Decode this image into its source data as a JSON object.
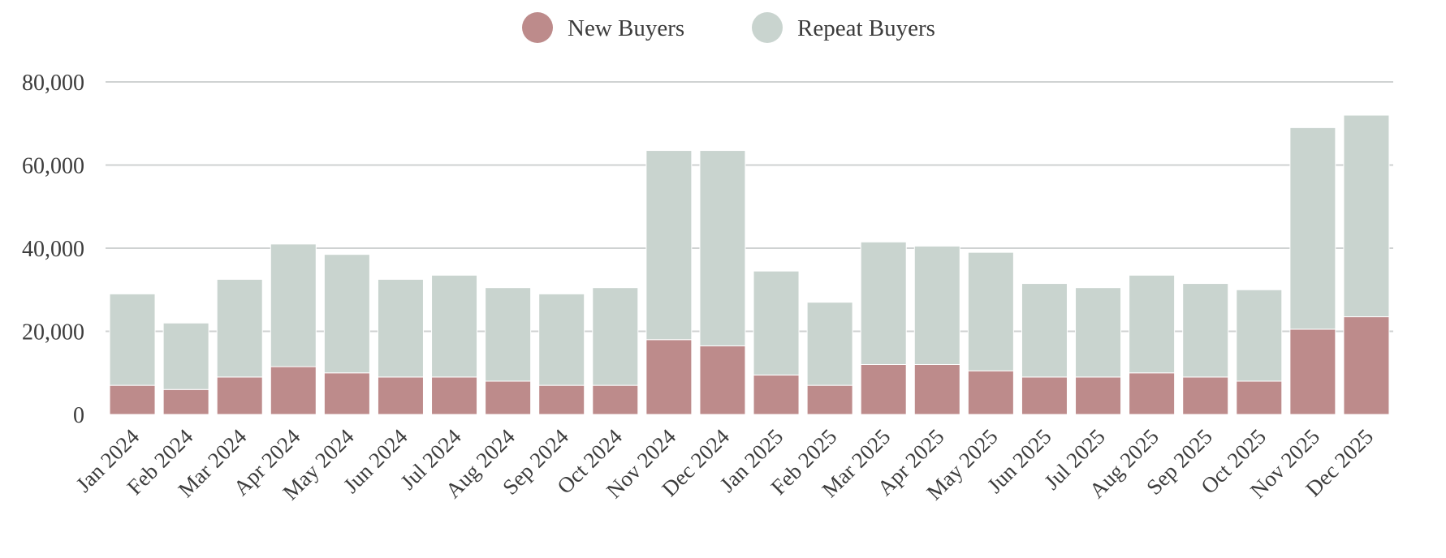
{
  "chart_data": {
    "type": "bar",
    "stacked": true,
    "categories": [
      "Jan 2024",
      "Feb 2024",
      "Mar 2024",
      "Apr 2024",
      "May 2024",
      "Jun 2024",
      "Jul 2024",
      "Aug 2024",
      "Sep 2024",
      "Oct 2024",
      "Nov 2024",
      "Dec 2024",
      "Jan 2025",
      "Feb 2025",
      "Mar 2025",
      "Apr 2025",
      "May 2025",
      "Jun 2025",
      "Jul 2025",
      "Aug 2025",
      "Sep 2025",
      "Oct 2025",
      "Nov 2025",
      "Dec 2025"
    ],
    "series": [
      {
        "name": "New Buyers",
        "color": "#bd8b8b",
        "values": [
          7000,
          6000,
          9000,
          11500,
          10000,
          9000,
          9000,
          8000,
          7000,
          7000,
          18000,
          16500,
          9500,
          7000,
          12000,
          12000,
          10500,
          9000,
          9000,
          10000,
          9000,
          8000,
          20500,
          23500
        ]
      },
      {
        "name": "Repeat Buyers",
        "color": "#c9d4cf",
        "values": [
          22000,
          16000,
          23500,
          29500,
          28500,
          23500,
          24500,
          22500,
          22000,
          23500,
          45500,
          47000,
          25000,
          20000,
          29500,
          28500,
          28500,
          22500,
          21500,
          23500,
          22500,
          22000,
          48500,
          48500
        ]
      }
    ],
    "yticks": [
      "0",
      "20,000",
      "40,000",
      "60,000",
      "80,000"
    ],
    "ytick_values": [
      0,
      20000,
      40000,
      60000,
      80000
    ],
    "ylim": [
      0,
      80000
    ],
    "grid": "horizontal",
    "legend_position": "top-center",
    "xlabel": "",
    "ylabel": "",
    "title": ""
  }
}
